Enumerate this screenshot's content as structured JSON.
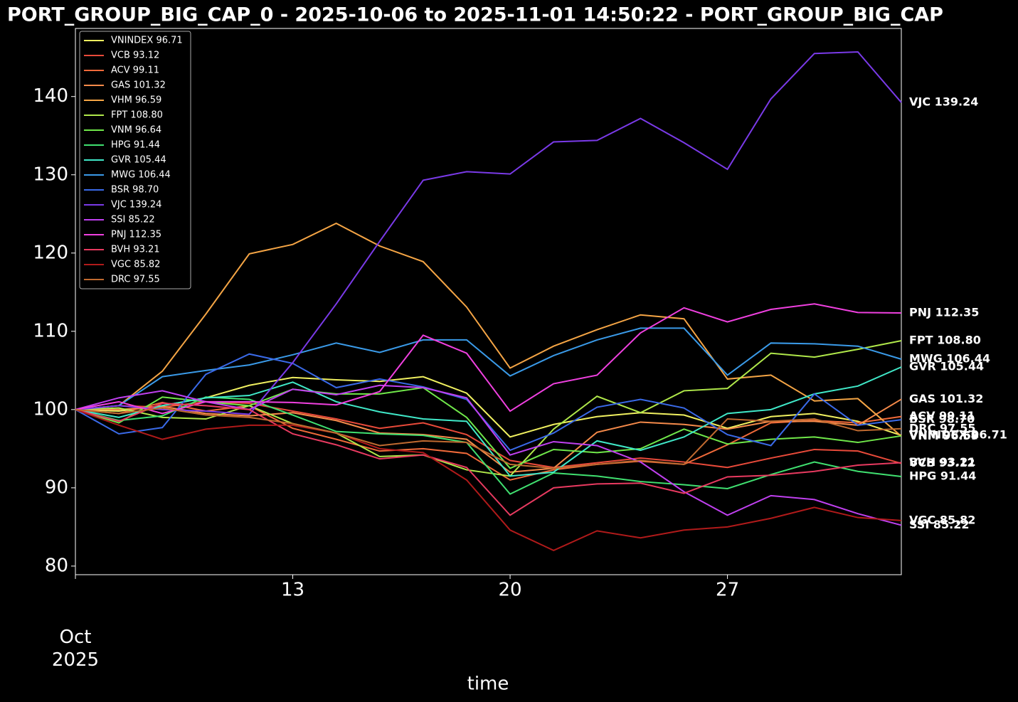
{
  "chart_data": {
    "type": "line",
    "title": "PORT_GROUP_BIG_CAP_0 - 2025-10-06 to 2025-11-01 14:50:22 - PORT_GROUP_BIG_CAP",
    "xlabel": "time",
    "x": [
      6,
      7.4,
      8.8,
      10.2,
      11.6,
      13,
      14.4,
      15.8,
      17.2,
      18.6,
      20,
      21.4,
      22.8,
      24.2,
      25.6,
      27,
      28.4,
      29.8,
      31.2,
      32.6
    ],
    "xlim": [
      6,
      32.6
    ],
    "xticks": [
      {
        "value": 6,
        "label": "Oct\n2025"
      },
      13,
      20,
      27
    ],
    "ylim": [
      78.9,
      148.7
    ],
    "yticks": [
      80,
      90,
      100,
      110,
      120,
      130,
      140
    ],
    "grid": false,
    "legend": "upper left",
    "series": [
      {
        "name": "VNINDEX 96.71",
        "color": "#f0f060",
        "values": [
          100,
          99.8,
          100.5,
          101.5,
          103.1,
          104.1,
          103.8,
          103.6,
          104.2,
          102.1,
          96.5,
          98.1,
          99.1,
          99.6,
          99.3,
          97.6,
          99.1,
          99.5,
          98.5,
          96.71
        ]
      },
      {
        "name": "VCB 93.12",
        "color": "#e84a3a",
        "values": [
          100,
          100.5,
          100.3,
          101,
          100.8,
          99.8,
          98.8,
          97.6,
          98.3,
          96.8,
          93.5,
          92.6,
          93.2,
          93.8,
          93.3,
          92.6,
          93.8,
          94.9,
          94.7,
          93.12
        ]
      },
      {
        "name": "ACV 99.11",
        "color": "#f06a3a",
        "values": [
          100,
          99.5,
          100.9,
          99.8,
          100.5,
          97.6,
          96.2,
          94.7,
          95,
          94.4,
          91,
          92.3,
          93,
          93.4,
          93,
          95.5,
          98.3,
          98.6,
          98.3,
          99.11
        ]
      },
      {
        "name": "GAS 101.32",
        "color": "#f58a4a",
        "values": [
          100,
          100,
          100.4,
          99.5,
          99.2,
          99.6,
          98.6,
          97,
          96.8,
          96.2,
          92,
          92.5,
          97.1,
          98.4,
          98.1,
          97.5,
          98.5,
          98.5,
          98,
          101.32
        ]
      },
      {
        "name": "VHM 96.59",
        "color": "#f5a545",
        "values": [
          100,
          100.5,
          104.9,
          112.2,
          119.9,
          121.1,
          123.8,
          120.9,
          118.9,
          113.1,
          105.3,
          108.1,
          110.2,
          112.1,
          111.6,
          103.9,
          104.4,
          101.1,
          101.4,
          96.59
        ]
      },
      {
        "name": "FPT 108.80",
        "color": "#b0e84a",
        "values": [
          100,
          100.2,
          99,
          98.8,
          100.5,
          98.2,
          97,
          94,
          94.2,
          92.3,
          91.5,
          97.5,
          101.7,
          99.6,
          102.4,
          102.7,
          107.2,
          106.7,
          107.7,
          108.8
        ]
      },
      {
        "name": "VNM 96.64",
        "color": "#70e84a",
        "values": [
          100,
          98.3,
          101.6,
          101,
          100.5,
          102.6,
          102,
          102,
          102.8,
          99,
          92.5,
          94.9,
          94.5,
          95,
          97.5,
          95.6,
          96.2,
          96.5,
          95.8,
          96.64
        ]
      },
      {
        "name": "HPG 91.44",
        "color": "#40e070",
        "values": [
          100,
          98.6,
          99.2,
          101.6,
          101.3,
          99.3,
          97.2,
          96.9,
          96.7,
          95.8,
          89.2,
          91.9,
          91.5,
          90.8,
          90.4,
          89.9,
          91.7,
          93.3,
          92.1,
          91.44
        ]
      },
      {
        "name": "GVR 105.44",
        "color": "#40e8c8",
        "values": [
          100,
          99,
          100.5,
          101.5,
          101.8,
          103.5,
          101,
          99.7,
          98.8,
          98.5,
          91.5,
          92,
          96,
          94.8,
          96.5,
          99.5,
          100,
          102,
          103,
          105.44
        ]
      },
      {
        "name": "MWG 106.44",
        "color": "#3a9ae8",
        "values": [
          100,
          100.5,
          104.2,
          105,
          105.7,
          107,
          108.5,
          107.3,
          108.9,
          108.9,
          104.3,
          106.9,
          108.9,
          110.4,
          110.4,
          104.4,
          108.5,
          108.4,
          108.1,
          106.44
        ]
      },
      {
        "name": "BSR 98.70",
        "color": "#3a6ae8",
        "values": [
          100,
          96.9,
          97.7,
          104.5,
          107.1,
          105.9,
          102.8,
          103.9,
          102.9,
          101.3,
          94.8,
          97,
          100.3,
          101.3,
          100.2,
          96.8,
          95.4,
          102,
          98,
          98.7
        ]
      },
      {
        "name": "VJC 139.24",
        "color": "#7a3ae8",
        "values": [
          100,
          100.5,
          100,
          99.8,
          99.4,
          106,
          113.5,
          121.5,
          129.3,
          130.4,
          130.1,
          134.2,
          134.4,
          137.2,
          134.1,
          130.7,
          139.7,
          145.5,
          145.7,
          139.24
        ]
      },
      {
        "name": "SSI 85.22",
        "color": "#c040f0",
        "values": [
          100,
          101.5,
          102.4,
          101,
          100,
          102.6,
          101.9,
          103.1,
          102.8,
          101.5,
          94.2,
          95.9,
          95.4,
          93.3,
          89.5,
          86.5,
          89,
          88.5,
          86.7,
          85.22
        ]
      },
      {
        "name": "PNJ 112.35",
        "color": "#f040e0",
        "values": [
          100,
          101,
          99.5,
          101,
          101,
          100.9,
          100.6,
          102.3,
          109.5,
          107.2,
          99.8,
          103.3,
          104.4,
          109.8,
          113,
          111.2,
          112.8,
          113.5,
          112.4,
          112.35
        ]
      },
      {
        "name": "BVH 93.21",
        "color": "#e83a60",
        "values": [
          100,
          98.5,
          100.8,
          100.5,
          100,
          96.9,
          95.5,
          93.7,
          94.2,
          92.6,
          86.5,
          90,
          90.5,
          90.6,
          89.3,
          91.4,
          91.6,
          92.1,
          92.9,
          93.21
        ]
      },
      {
        "name": "VGC 85.82",
        "color": "#b01a1a",
        "values": [
          100,
          98,
          96.2,
          97.5,
          98,
          98,
          97,
          95,
          94.5,
          91,
          84.6,
          82,
          84.5,
          83.6,
          84.6,
          85,
          86.1,
          87.5,
          86.2,
          85.82
        ]
      },
      {
        "name": "DRC 97.55",
        "color": "#c06a30",
        "values": [
          100,
          99.5,
          100.2,
          99.3,
          99,
          98.2,
          97,
          95.4,
          96,
          95.8,
          93,
          92.5,
          93,
          93.5,
          93,
          98.8,
          98.5,
          98.8,
          97.3,
          97.55
        ]
      }
    ]
  }
}
